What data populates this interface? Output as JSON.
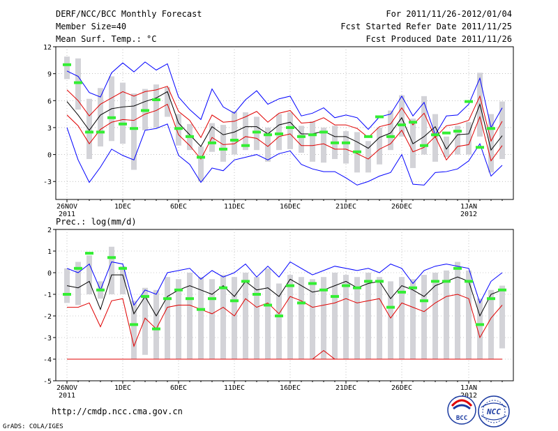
{
  "header": {
    "title": "DERF/NCC/BCC Monthly Forecast",
    "member_size": "Member Size=40",
    "variable": "Mean Surf. Temp.: °C",
    "period": "For 2011/11/26-2012/01/04",
    "started": "Fcst Started Refer Date 2011/11/25",
    "produced": "Fcst Produced Date 2011/11/26"
  },
  "footer": {
    "url": "http://cmdp.ncc.cma.gov.cn",
    "credit": "GrADS: COLA/IGES",
    "logo_bcc": "BCC",
    "logo_ncc": "NCC"
  },
  "chart_data": [
    {
      "type": "box",
      "title": "Mean Surf. Temp.: °C",
      "ylim": [
        -5,
        12
      ],
      "yticks": [
        -3,
        0,
        3,
        6,
        9,
        12
      ],
      "xticks": [
        {
          "i": 0,
          "label": "26NOV",
          "sub": "2011"
        },
        {
          "i": 5,
          "label": "1DEC"
        },
        {
          "i": 10,
          "label": "6DEC"
        },
        {
          "i": 15,
          "label": "11DEC"
        },
        {
          "i": 20,
          "label": "16DEC"
        },
        {
          "i": 25,
          "label": "21DEC"
        },
        {
          "i": 30,
          "label": "26DEC"
        },
        {
          "i": 36,
          "label": "1JAN",
          "sub": "2012"
        }
      ],
      "days": 40,
      "series": [
        {
          "name": "max",
          "color": "#0000ff",
          "values": [
            9.3,
            8.7,
            6.9,
            6.4,
            9.1,
            10.2,
            9.2,
            10.3,
            9.4,
            10.1,
            6.4,
            5.0,
            3.9,
            7.3,
            5.3,
            4.6,
            6.1,
            7.1,
            5.6,
            6.2,
            6.5,
            4.3,
            4.6,
            5.2,
            4.1,
            4.4,
            4.1,
            2.8,
            4.2,
            4.5,
            6.5,
            4.3,
            5.8,
            2.2,
            4.3,
            4.4,
            5.6,
            8.5,
            3.0,
            5.2
          ]
        },
        {
          "name": "upper",
          "color": "#e00000",
          "values": [
            7.2,
            6.0,
            4.3,
            5.6,
            6.3,
            7.0,
            6.5,
            7.0,
            7.2,
            7.6,
            4.8,
            3.8,
            1.9,
            4.4,
            3.6,
            3.7,
            4.2,
            4.8,
            3.6,
            4.6,
            4.9,
            3.5,
            3.6,
            4.1,
            3.3,
            3.3,
            2.9,
            1.9,
            3.1,
            3.4,
            5.2,
            3.3,
            4.6,
            1.9,
            3.2,
            3.4,
            3.8,
            6.5,
            1.5,
            3.7
          ]
        },
        {
          "name": "mean",
          "color": "#000000",
          "values": [
            5.9,
            4.4,
            2.7,
            4.4,
            5.1,
            5.3,
            5.4,
            5.9,
            6.3,
            7.0,
            3.5,
            2.2,
            0.9,
            3.1,
            2.2,
            2.5,
            3.1,
            3.1,
            2.3,
            3.3,
            3.6,
            2.3,
            2.3,
            2.6,
            2.0,
            2.0,
            1.4,
            0.7,
            1.9,
            2.4,
            4.1,
            1.2,
            2.0,
            3.1,
            0.6,
            2.2,
            2.3,
            5.6,
            0.5,
            2.1
          ]
        },
        {
          "name": "lower",
          "color": "#e00000",
          "values": [
            4.4,
            3.2,
            1.2,
            2.8,
            3.6,
            3.9,
            3.8,
            4.5,
            4.9,
            5.6,
            2.2,
            1.0,
            -0.5,
            1.9,
            1.1,
            1.2,
            2.0,
            1.8,
            0.9,
            2.0,
            2.3,
            1.0,
            1.0,
            1.2,
            0.6,
            0.6,
            0.1,
            -0.5,
            0.6,
            1.2,
            2.7,
            0.3,
            0.8,
            2.0,
            -0.6,
            0.9,
            1.1,
            4.2,
            -0.7,
            1.0
          ]
        },
        {
          "name": "min",
          "color": "#0000ff",
          "values": [
            3.0,
            -0.6,
            -3.1,
            -1.4,
            0.6,
            -0.1,
            -0.6,
            2.7,
            2.9,
            3.4,
            -0.1,
            -1.1,
            -3.1,
            -1.5,
            -1.8,
            -0.6,
            -0.3,
            0.0,
            -0.6,
            0.1,
            0.4,
            -1.1,
            -1.6,
            -1.9,
            -1.9,
            -2.6,
            -3.4,
            -3.0,
            -2.4,
            -2.0,
            0.0,
            -3.3,
            -3.4,
            -2.0,
            -1.9,
            -1.6,
            -0.7,
            1.2,
            -2.4,
            -1.2
          ]
        }
      ],
      "boxes": [
        [
          8.4,
          10.9
        ],
        [
          5.0,
          10.7
        ],
        [
          -0.5,
          6.2
        ],
        [
          0.9,
          7.4
        ],
        [
          1.5,
          8.7
        ],
        [
          1.2,
          8.0
        ],
        [
          -1.7,
          6.8
        ],
        [
          2.7,
          7.3
        ],
        [
          3.0,
          7.8
        ],
        [
          4.2,
          7.5
        ],
        [
          1.0,
          4.5
        ],
        [
          0.5,
          3.4
        ],
        [
          -3.0,
          0.9
        ],
        [
          0.3,
          3.5
        ],
        [
          -0.8,
          3.3
        ],
        [
          0.0,
          4.8
        ],
        [
          0.5,
          4.7
        ],
        [
          0.5,
          4.2
        ],
        [
          -0.8,
          3.0
        ],
        [
          0.5,
          4.5
        ],
        [
          0.6,
          4.7
        ],
        [
          0.2,
          3.2
        ],
        [
          -0.8,
          3.7
        ],
        [
          -0.9,
          3.0
        ],
        [
          -0.5,
          3.2
        ],
        [
          -1.0,
          2.6
        ],
        [
          -2.0,
          2.5
        ],
        [
          -2.0,
          1.5
        ],
        [
          -1.1,
          3.0
        ],
        [
          0.5,
          4.9
        ],
        [
          2.0,
          6.6
        ],
        [
          -1.5,
          4.0
        ],
        [
          0.0,
          6.5
        ],
        [
          -0.8,
          4.5
        ],
        [
          -0.3,
          2.0
        ],
        [
          0.0,
          3.2
        ],
        [
          0.0,
          3.6
        ],
        [
          2.0,
          9.1
        ],
        [
          -2.0,
          4.5
        ],
        [
          -0.5,
          5.9
        ]
      ],
      "obs": [
        10.0,
        8.0,
        2.5,
        2.5,
        4.1,
        3.4,
        2.9,
        4.9,
        6.1,
        null,
        2.9,
        2.0,
        -0.3,
        1.3,
        0.6,
        1.6,
        1.0,
        2.5,
        2.2,
        2.3,
        3.0,
        2.0,
        2.2,
        2.5,
        1.3,
        1.3,
        0.3,
        2.0,
        4.2,
        2.0,
        3.3,
        3.6,
        1.0,
        2.2,
        2.4,
        2.6,
        5.9,
        0.8,
        2.9,
        null
      ],
      "obs_color": "#33ee33",
      "box_color": "#d3d3d8"
    },
    {
      "type": "box",
      "title": "Prec.: log(mm/d)",
      "ylim": [
        -5,
        2
      ],
      "yticks": [
        -5,
        -4,
        -3,
        -2,
        -1,
        0,
        1,
        2
      ],
      "xticks": [
        {
          "i": 0,
          "label": "26NOV",
          "sub": "2011"
        },
        {
          "i": 5,
          "label": "1DEC"
        },
        {
          "i": 10,
          "label": "6DEC"
        },
        {
          "i": 15,
          "label": "11DEC"
        },
        {
          "i": 20,
          "label": "16DEC"
        },
        {
          "i": 25,
          "label": "21DEC"
        },
        {
          "i": 30,
          "label": "26DEC"
        },
        {
          "i": 36,
          "label": "1JAN",
          "sub": "2012"
        }
      ],
      "days": 40,
      "series": [
        {
          "name": "max",
          "color": "#0000ff",
          "values": [
            0.2,
            0.0,
            0.4,
            -0.8,
            0.5,
            0.4,
            -1.5,
            -0.8,
            -1.0,
            0.0,
            0.1,
            0.2,
            -0.3,
            0.1,
            -0.2,
            0.0,
            0.4,
            -0.2,
            0.3,
            -0.2,
            0.5,
            0.2,
            -0.1,
            0.1,
            0.3,
            0.2,
            0.1,
            0.2,
            0.0,
            0.4,
            0.2,
            -0.5,
            0.1,
            0.3,
            0.4,
            0.3,
            0.2,
            -1.4,
            -0.4,
            0.0
          ]
        },
        {
          "name": "mean",
          "color": "#000000",
          "values": [
            -0.6,
            -0.7,
            -0.4,
            -1.7,
            -0.1,
            -0.1,
            -1.9,
            -1.1,
            -2.0,
            -1.1,
            -0.8,
            -0.6,
            -0.8,
            -1.0,
            -0.6,
            -1.1,
            -0.4,
            -0.8,
            -0.7,
            -1.1,
            -0.3,
            -0.6,
            -0.9,
            -0.8,
            -0.6,
            -0.4,
            -0.7,
            -0.5,
            -0.4,
            -1.2,
            -0.6,
            -0.8,
            -1.1,
            -0.6,
            -0.4,
            -0.2,
            -0.4,
            -2.0,
            -1.0,
            -0.8
          ]
        },
        {
          "name": "lower",
          "color": "#e00000",
          "values": [
            -1.6,
            -1.6,
            -1.4,
            -2.5,
            -1.3,
            -1.2,
            -3.4,
            -2.1,
            -2.6,
            -1.6,
            -1.5,
            -1.5,
            -1.7,
            -1.9,
            -1.6,
            -2.0,
            -1.2,
            -1.6,
            -1.4,
            -1.9,
            -1.1,
            -1.3,
            -1.6,
            -1.5,
            -1.4,
            -1.2,
            -1.4,
            -1.3,
            -1.2,
            -2.1,
            -1.4,
            -1.6,
            -1.8,
            -1.4,
            -1.1,
            -1.0,
            -1.2,
            -3.0,
            -2.1,
            -1.5
          ]
        },
        {
          "name": "min",
          "color": "#e00000",
          "values": [
            -4.0,
            -4.0,
            -4.0,
            -4.0,
            -4.0,
            -4.0,
            -4.0,
            -4.0,
            -4.0,
            -4.0,
            -4.0,
            -4.0,
            -4.0,
            -4.0,
            -4.0,
            -4.0,
            -4.0,
            -4.0,
            -4.0,
            -4.0,
            -4.0,
            -4.0,
            -4.0,
            -4.0,
            -4.0,
            -4.0,
            -4.0,
            -4.0,
            -4.0,
            -4.0,
            -4.0,
            -4.0,
            -4.0,
            -4.0,
            -4.0,
            -4.0,
            -4.0,
            -4.0,
            -4.0,
            -4.0
          ]
        }
      ],
      "spike": {
        "from": 22,
        "to": 24,
        "peak_index": 23,
        "peak": -3.6,
        "color": "#e00000"
      },
      "boxes": [
        [
          -1.4,
          0.2
        ],
        [
          -1.5,
          0.5
        ],
        [
          -1.0,
          0.8
        ],
        [
          -1.2,
          -0.4
        ],
        [
          -1.0,
          1.2
        ],
        [
          -1.0,
          0.3
        ],
        [
          -4.0,
          -1.3
        ],
        [
          -3.8,
          -0.7
        ],
        [
          -4.0,
          -0.8
        ],
        [
          -4.0,
          -0.2
        ],
        [
          -4.0,
          -0.3
        ],
        [
          -4.0,
          0.0
        ],
        [
          -4.0,
          -0.2
        ],
        [
          -4.0,
          -0.3
        ],
        [
          -4.0,
          -0.1
        ],
        [
          -4.0,
          -0.2
        ],
        [
          -4.0,
          0.0
        ],
        [
          -4.0,
          -0.2
        ],
        [
          -4.0,
          0.2
        ],
        [
          -4.0,
          -0.5
        ],
        [
          -4.0,
          -0.1
        ],
        [
          -4.0,
          -0.2
        ],
        [
          -4.0,
          -0.3
        ],
        [
          -4.0,
          -0.2
        ],
        [
          -4.0,
          0.0
        ],
        [
          -4.0,
          -0.1
        ],
        [
          -4.0,
          -0.2
        ],
        [
          -4.0,
          0.0
        ],
        [
          -4.0,
          -0.2
        ],
        [
          -4.0,
          -0.4
        ],
        [
          -4.0,
          -0.2
        ],
        [
          -4.0,
          -0.3
        ],
        [
          -4.0,
          -0.1
        ],
        [
          -4.0,
          0.0
        ],
        [
          -4.0,
          0.1
        ],
        [
          -4.0,
          0.5
        ],
        [
          -4.0,
          0.1
        ],
        [
          -4.0,
          -1.2
        ],
        [
          -4.0,
          -0.8
        ],
        [
          -3.5,
          -0.6
        ]
      ],
      "obs": [
        -1.0,
        0.2,
        0.9,
        -0.8,
        0.7,
        0.2,
        -2.4,
        -1.1,
        -2.6,
        -1.2,
        -0.8,
        -1.2,
        -1.7,
        -1.2,
        -0.7,
        -1.3,
        -0.4,
        -1.0,
        -1.5,
        -2.0,
        -0.6,
        -1.4,
        -0.5,
        -0.8,
        -1.1,
        -0.6,
        -0.7,
        -0.4,
        -0.4,
        -1.6,
        -0.9,
        -0.7,
        -1.3,
        -0.4,
        -0.4,
        0.2,
        -0.4,
        -2.4,
        -1.2,
        -0.8
      ],
      "obs_color": "#33ee33",
      "box_color": "#d3d3d8"
    }
  ]
}
